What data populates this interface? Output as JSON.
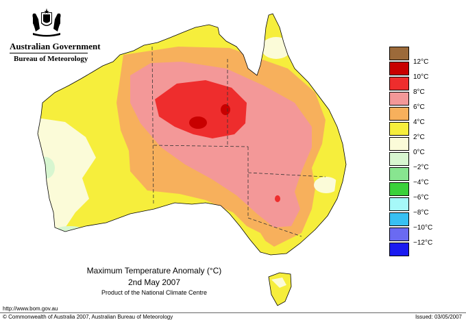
{
  "header": {
    "government": "Australian Government",
    "bureau": "Bureau of Meteorology"
  },
  "legend": {
    "items": [
      {
        "label": "",
        "color": "#9c6a3a"
      },
      {
        "label": "12°C",
        "color": "#c80000"
      },
      {
        "label": "10°C",
        "color": "#ee2d2d"
      },
      {
        "label": "8°C",
        "color": "#f39898"
      },
      {
        "label": "6°C",
        "color": "#f7b05c"
      },
      {
        "label": "4°C",
        "color": "#f6ee3c"
      },
      {
        "label": "2°C",
        "color": "#fbfbd8"
      },
      {
        "label": "0°C",
        "color": "#d7f6d0"
      },
      {
        "label": "−2°C",
        "color": "#88e590"
      },
      {
        "label": "−4°C",
        "color": "#3ad13a"
      },
      {
        "label": "−6°C",
        "color": "#a6f8f8"
      },
      {
        "label": "−8°C",
        "color": "#38c0f2"
      },
      {
        "label": "−10°C",
        "color": "#6a6af2"
      },
      {
        "label": "−12°C",
        "color": "#1a1af0"
      }
    ]
  },
  "caption": {
    "title": "Maximum Temperature Anomaly (°C)",
    "date": "2nd May 2007",
    "product": "Product of the National Climate Centre"
  },
  "footer": {
    "url": "http://www.bom.gov.au",
    "copyright": "© Commonwealth of Australia 2007, Australian Bureau of Meteorology",
    "issued": "Issued: 03/05/2007"
  }
}
